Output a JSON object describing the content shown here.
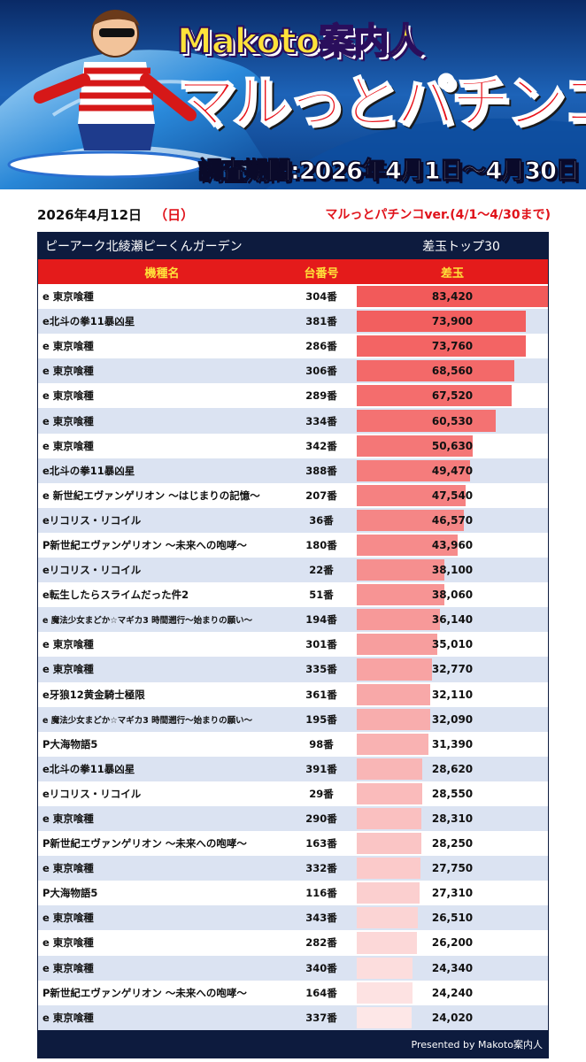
{
  "banner": {
    "brand": "Makoto案内人",
    "title": "マルっとパチンコver.",
    "period": "調査期間:2026年4月1日～4月30日"
  },
  "header": {
    "date": "2026年4月12日",
    "day_of_week": "（日）",
    "series_range": "マルっとパチンコver.(4/1～4/30まで)"
  },
  "table": {
    "store_name": "ピーアーク北綾瀬ピーくんガーデン",
    "ranking_label": "差玉トップ30",
    "columns": [
      "機種名",
      "台番号",
      "差玉"
    ],
    "max_value": 83420,
    "rows": [
      {
        "name": "e 東京喰種",
        "number": "304番",
        "value": "83,420",
        "v": 83420
      },
      {
        "name": "e北斗の拳11暴凶星",
        "number": "381番",
        "value": "73,900",
        "v": 73900
      },
      {
        "name": "e 東京喰種",
        "number": "286番",
        "value": "73,760",
        "v": 73760
      },
      {
        "name": "e 東京喰種",
        "number": "306番",
        "value": "68,560",
        "v": 68560
      },
      {
        "name": "e 東京喰種",
        "number": "289番",
        "value": "67,520",
        "v": 67520
      },
      {
        "name": "e 東京喰種",
        "number": "334番",
        "value": "60,530",
        "v": 60530
      },
      {
        "name": "e 東京喰種",
        "number": "342番",
        "value": "50,630",
        "v": 50630
      },
      {
        "name": "e北斗の拳11暴凶星",
        "number": "388番",
        "value": "49,470",
        "v": 49470
      },
      {
        "name": "e 新世紀エヴァンゲリオン ～はじまりの記憶～",
        "number": "207番",
        "value": "47,540",
        "v": 47540
      },
      {
        "name": "eリコリス・リコイル",
        "number": "36番",
        "value": "46,570",
        "v": 46570
      },
      {
        "name": "P新世紀エヴァンゲリオン ～未来への咆哮～",
        "number": "180番",
        "value": "43,960",
        "v": 43960
      },
      {
        "name": "eリコリス・リコイル",
        "number": "22番",
        "value": "38,100",
        "v": 38100
      },
      {
        "name": "e転生したらスライムだった件2",
        "number": "51番",
        "value": "38,060",
        "v": 38060
      },
      {
        "name": "e 魔法少女まどか☆マギカ3 時間遡行～始まりの願い～",
        "number": "194番",
        "value": "36,140",
        "v": 36140,
        "small": true
      },
      {
        "name": "e 東京喰種",
        "number": "301番",
        "value": "35,010",
        "v": 35010
      },
      {
        "name": "e 東京喰種",
        "number": "335番",
        "value": "32,770",
        "v": 32770
      },
      {
        "name": "e牙狼12黄金騎士極限",
        "number": "361番",
        "value": "32,110",
        "v": 32110
      },
      {
        "name": "e 魔法少女まどか☆マギカ3 時間遡行～始まりの願い～",
        "number": "195番",
        "value": "32,090",
        "v": 32090,
        "small": true
      },
      {
        "name": "P大海物語5",
        "number": "98番",
        "value": "31,390",
        "v": 31390
      },
      {
        "name": "e北斗の拳11暴凶星",
        "number": "391番",
        "value": "28,620",
        "v": 28620
      },
      {
        "name": "eリコリス・リコイル",
        "number": "29番",
        "value": "28,550",
        "v": 28550
      },
      {
        "name": "e 東京喰種",
        "number": "290番",
        "value": "28,310",
        "v": 28310
      },
      {
        "name": "P新世紀エヴァンゲリオン ～未来への咆哮～",
        "number": "163番",
        "value": "28,250",
        "v": 28250
      },
      {
        "name": "e 東京喰種",
        "number": "332番",
        "value": "27,750",
        "v": 27750
      },
      {
        "name": "P大海物語5",
        "number": "116番",
        "value": "27,310",
        "v": 27310
      },
      {
        "name": "e 東京喰種",
        "number": "343番",
        "value": "26,510",
        "v": 26510
      },
      {
        "name": "e 東京喰種",
        "number": "282番",
        "value": "26,200",
        "v": 26200
      },
      {
        "name": "e 東京喰種",
        "number": "340番",
        "value": "24,340",
        "v": 24340
      },
      {
        "name": "P新世紀エヴァンゲリオン ～未来への咆哮～",
        "number": "164番",
        "value": "24,240",
        "v": 24240
      },
      {
        "name": "e 東京喰種",
        "number": "337番",
        "value": "24,020",
        "v": 24020
      }
    ]
  },
  "footer": {
    "credit": "Presented by Makoto案内人"
  },
  "colors": {
    "header_navy": "#0d1b3e",
    "header_red": "#e41b1b",
    "header_yellow": "#ffe23a",
    "bar_strong": "#f25a5a",
    "bar_light": "#fde7e7"
  }
}
